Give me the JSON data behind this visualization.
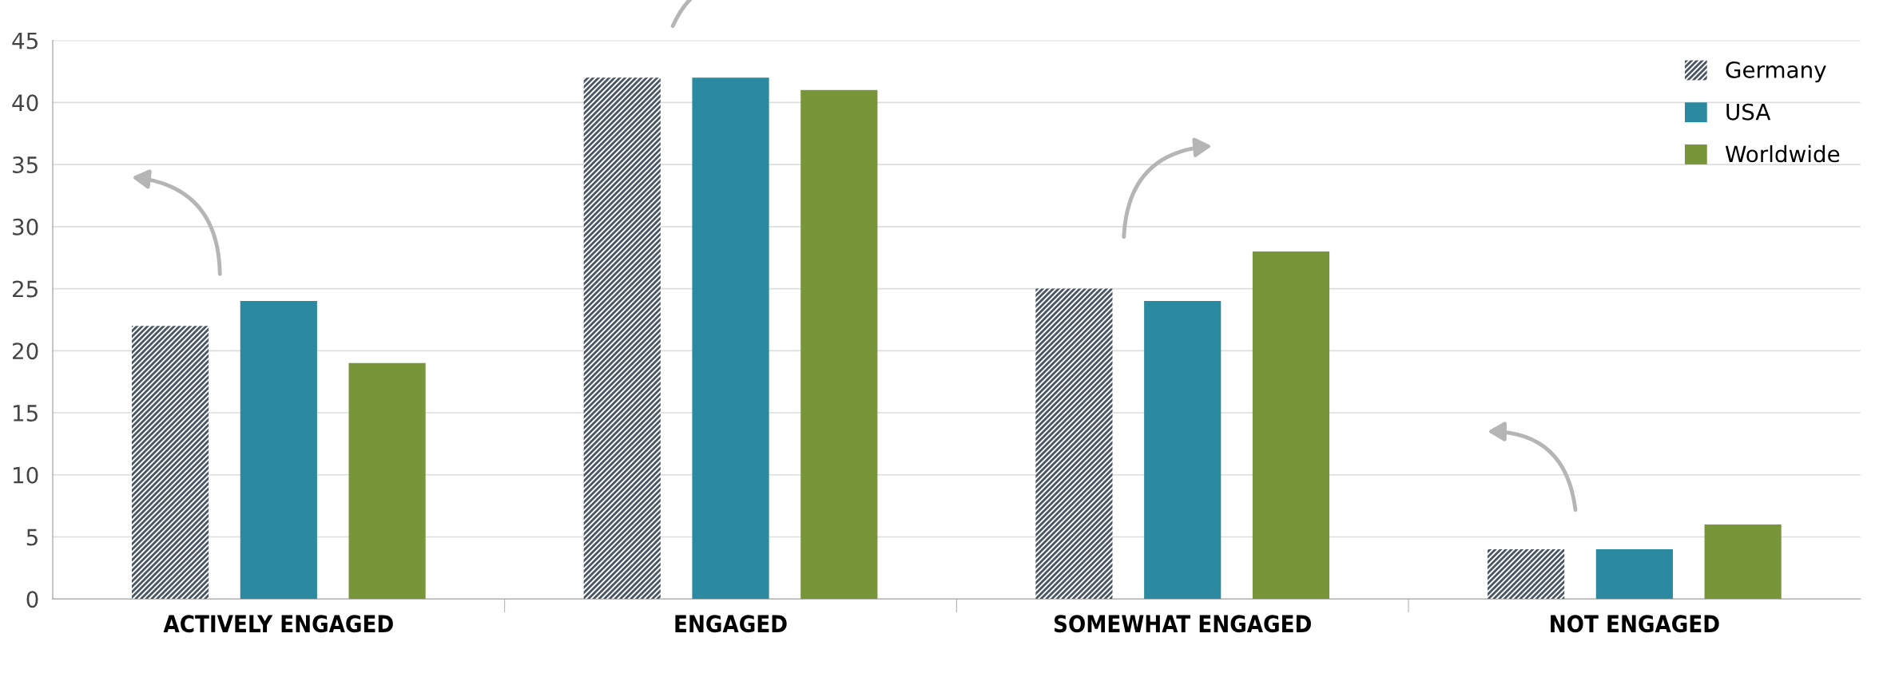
{
  "chart_data": {
    "type": "bar",
    "categories": [
      "ACTIVELY ENGAGED",
      "ENGAGED",
      "SOMEWHAT ENGAGED",
      "NOT ENGAGED"
    ],
    "series": [
      {
        "name": "Germany",
        "color": "#4a5563",
        "values": [
          22,
          42,
          25,
          4
        ]
      },
      {
        "name": "USA",
        "color": "#2b89a0",
        "values": [
          24,
          42,
          24,
          4
        ]
      },
      {
        "name": "Worldwide",
        "color": "#78953a",
        "values": [
          19,
          41,
          28,
          6
        ]
      }
    ],
    "ylim": [
      0,
      45
    ],
    "yticks": [
      0,
      5,
      10,
      15,
      20,
      25,
      30,
      35,
      40,
      45
    ],
    "grid": "y",
    "legend": "top right"
  }
}
